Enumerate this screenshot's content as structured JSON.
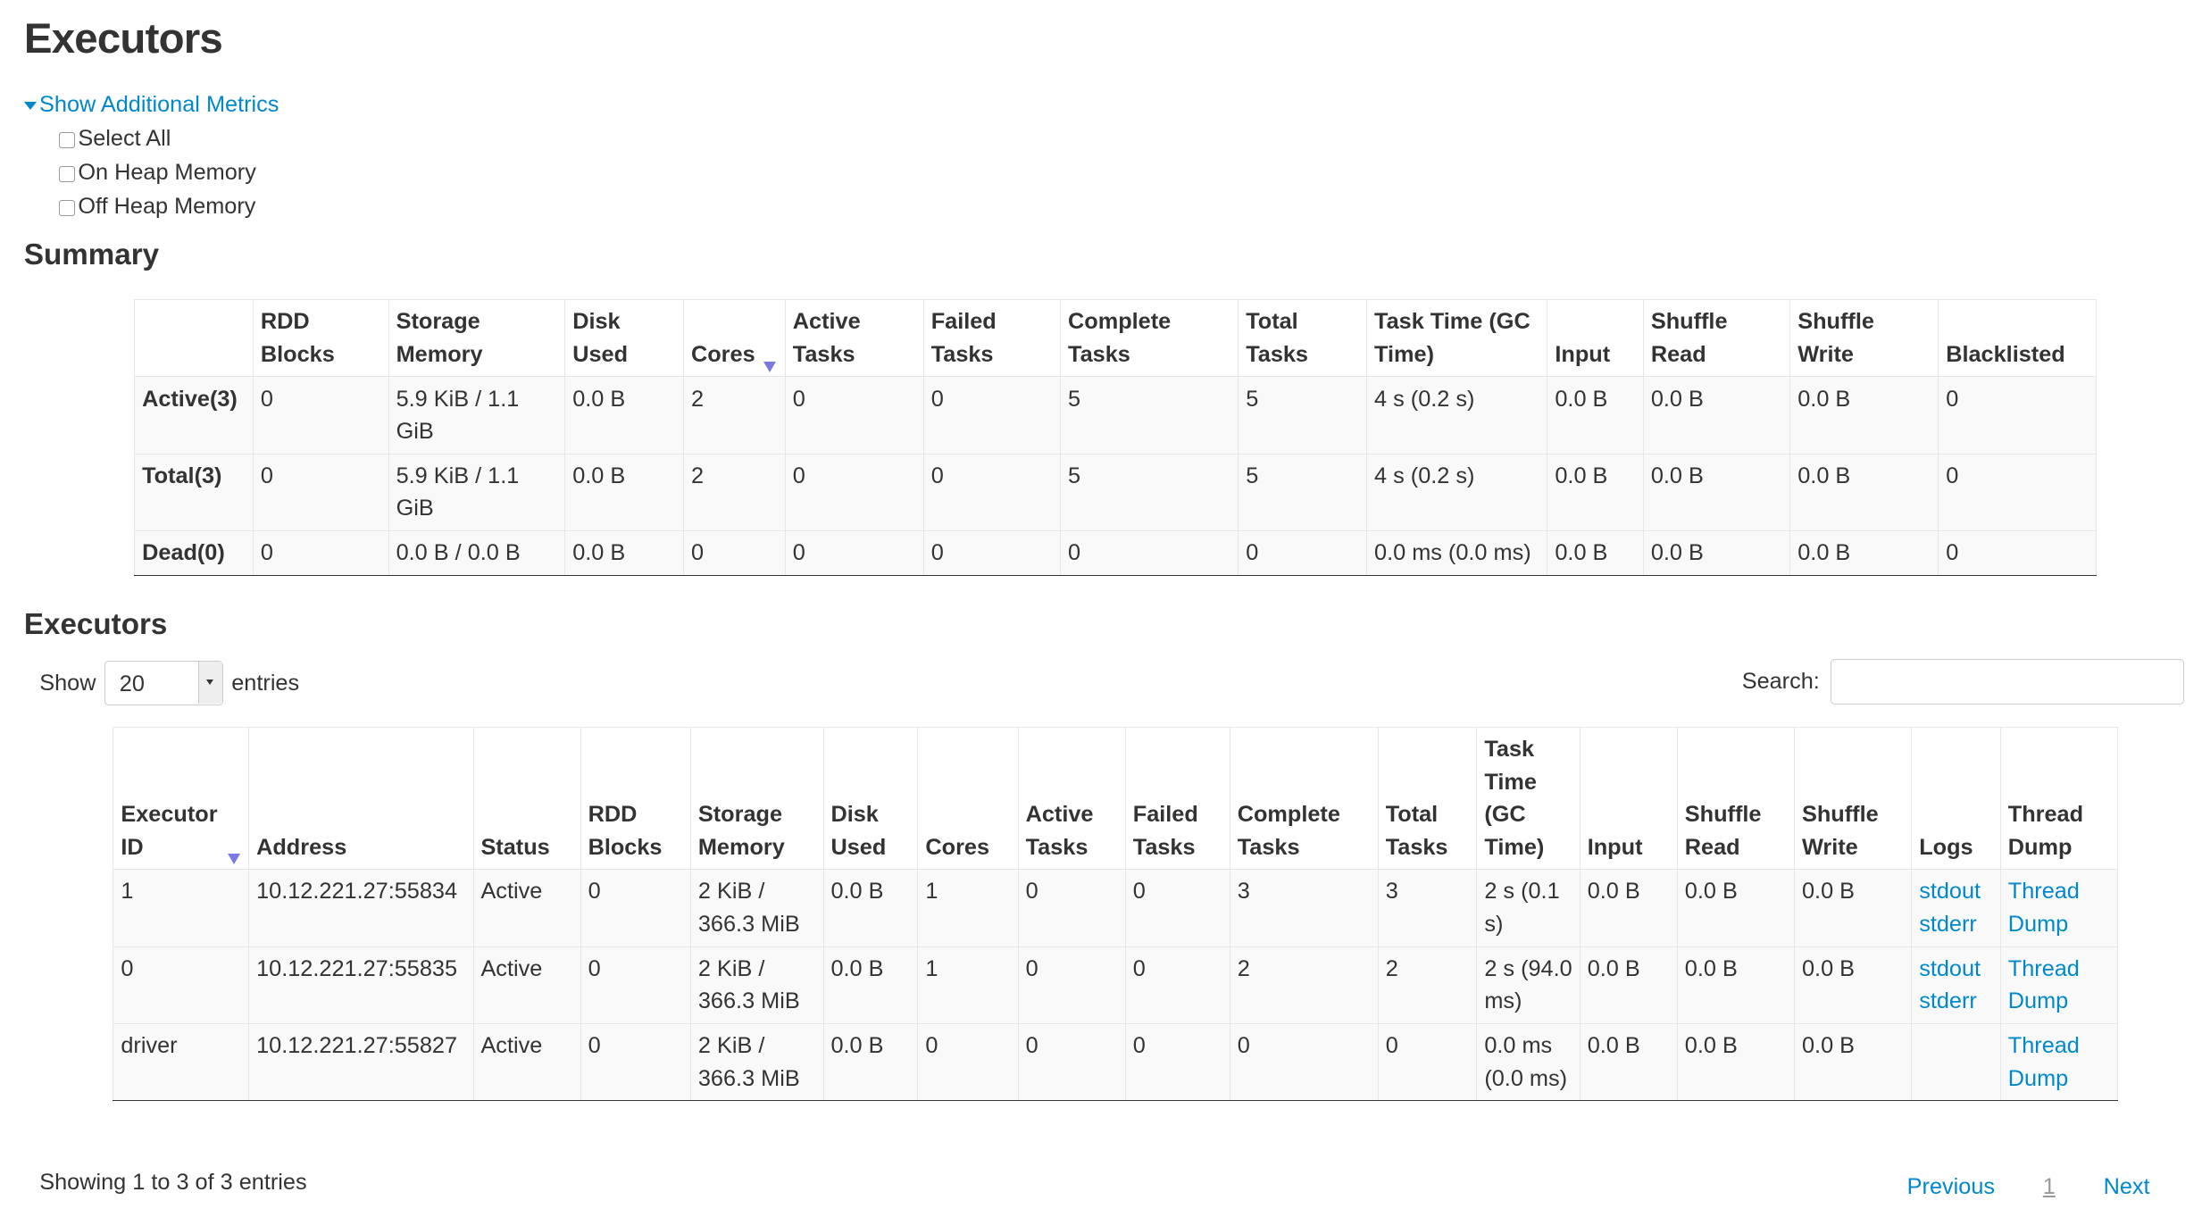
{
  "page": {
    "title": "Executors"
  },
  "metrics": {
    "toggle_label": "Show Additional Metrics",
    "options": [
      "Select All",
      "On Heap Memory",
      "Off Heap Memory"
    ]
  },
  "summary": {
    "title": "Summary",
    "headers": [
      "",
      "RDD Blocks",
      "Storage Memory",
      "Disk Used",
      "Cores",
      "Active Tasks",
      "Failed Tasks",
      "Complete Tasks",
      "Total Tasks",
      "Task Time (GC Time)",
      "Input",
      "Shuffle Read",
      "Shuffle Write",
      "Blacklisted"
    ],
    "rows": [
      [
        "Active(3)",
        "0",
        "5.9 KiB / 1.1 GiB",
        "0.0 B",
        "2",
        "0",
        "0",
        "5",
        "5",
        "4 s (0.2 s)",
        "0.0 B",
        "0.0 B",
        "0.0 B",
        "0"
      ],
      [
        "Total(3)",
        "0",
        "5.9 KiB / 1.1 GiB",
        "0.0 B",
        "2",
        "0",
        "0",
        "5",
        "5",
        "4 s (0.2 s)",
        "0.0 B",
        "0.0 B",
        "0.0 B",
        "0"
      ],
      [
        "Dead(0)",
        "0",
        "0.0 B / 0.0 B",
        "0.0 B",
        "0",
        "0",
        "0",
        "0",
        "0",
        "0.0 ms (0.0 ms)",
        "0.0 B",
        "0.0 B",
        "0.0 B",
        "0"
      ]
    ]
  },
  "executors": {
    "title": "Executors",
    "show_label": "Show",
    "entries_value": "20",
    "entries_label": "entries",
    "search_label": "Search:",
    "search_value": "",
    "headers": [
      "Executor ID",
      "Address",
      "Status",
      "RDD Blocks",
      "Storage Memory",
      "Disk Used",
      "Cores",
      "Active Tasks",
      "Failed Tasks",
      "Complete Tasks",
      "Total Tasks",
      "Task Time (GC Time)",
      "Input",
      "Shuffle Read",
      "Shuffle Write",
      "Logs",
      "Thread Dump"
    ],
    "rows": [
      {
        "cells": [
          "1",
          "10.12.221.27:55834",
          "Active",
          "0",
          "2 KiB / 366.3 MiB",
          "0.0 B",
          "1",
          "0",
          "0",
          "3",
          "3",
          "2 s (0.1 s)",
          "0.0 B",
          "0.0 B",
          "0.0 B"
        ],
        "logs": [
          "stdout",
          "stderr"
        ],
        "dump": "Thread Dump"
      },
      {
        "cells": [
          "0",
          "10.12.221.27:55835",
          "Active",
          "0",
          "2 KiB / 366.3 MiB",
          "0.0 B",
          "1",
          "0",
          "0",
          "2",
          "2",
          "2 s (94.0 ms)",
          "0.0 B",
          "0.0 B",
          "0.0 B"
        ],
        "logs": [
          "stdout",
          "stderr"
        ],
        "dump": "Thread Dump"
      },
      {
        "cells": [
          "driver",
          "10.12.221.27:55827",
          "Active",
          "0",
          "2 KiB / 366.3 MiB",
          "0.0 B",
          "0",
          "0",
          "0",
          "0",
          "0",
          "0.0 ms (0.0 ms)",
          "0.0 B",
          "0.0 B",
          "0.0 B"
        ],
        "logs": [],
        "dump": "Thread Dump"
      }
    ],
    "info": "Showing 1 to 3 of 3 entries",
    "pager": {
      "previous": "Previous",
      "page": "1",
      "next": "Next"
    }
  },
  "colors": {
    "link": "#0088cc",
    "sort_arrow": "#7a7ae0",
    "row_bg": "#f9f9f9"
  }
}
